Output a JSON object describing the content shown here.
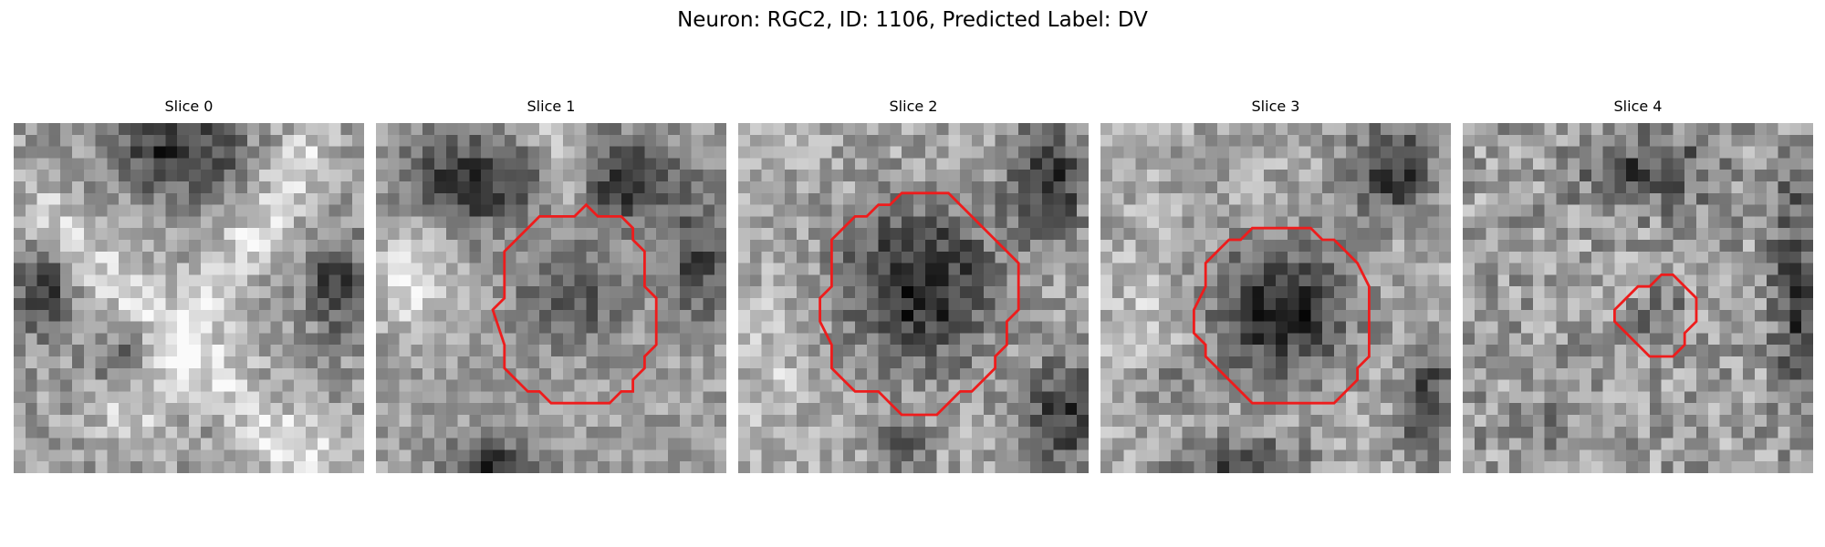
{
  "figure": {
    "title": "Neuron: RGC2, ID: 1106, Predicted Label: DV"
  },
  "colors": {
    "contour": "#ee1c1c",
    "background": "#ffffff",
    "colormap": "grayscale"
  },
  "panels": [
    {
      "title": "Slice 0",
      "has_contour": false
    },
    {
      "title": "Slice 1",
      "has_contour": true
    },
    {
      "title": "Slice 2",
      "has_contour": true
    },
    {
      "title": "Slice 3",
      "has_contour": true
    },
    {
      "title": "Slice 4",
      "has_contour": true
    }
  ]
}
